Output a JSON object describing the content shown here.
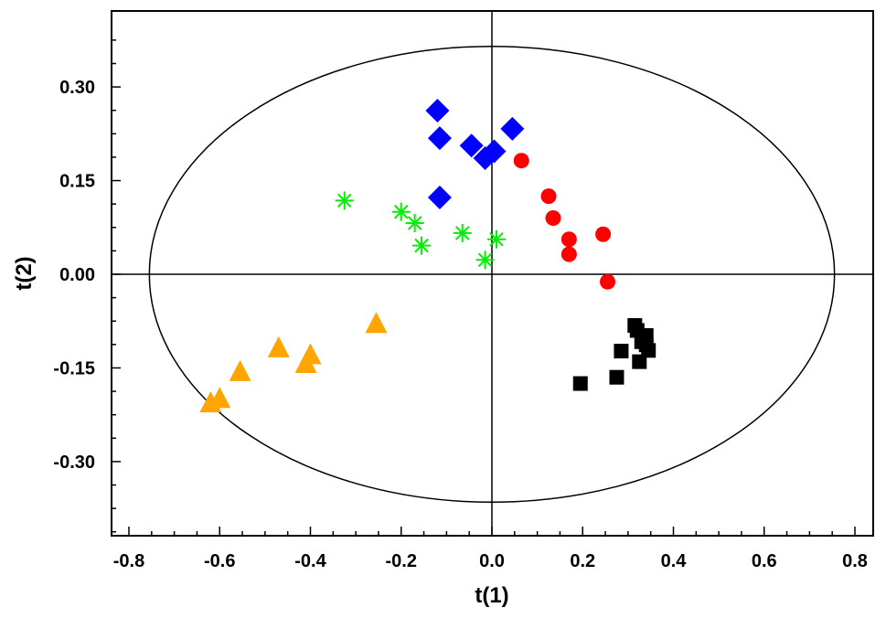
{
  "chart_data": {
    "type": "scatter",
    "title": "",
    "xlabel": "t(1)",
    "ylabel": "t(2)",
    "xlim": [
      -0.84,
      0.84
    ],
    "ylim": [
      -0.42,
      0.41
    ],
    "x_ticks": [
      -0.8,
      -0.6,
      -0.4,
      -0.2,
      0.0,
      0.2,
      0.4,
      0.6,
      0.8
    ],
    "x_tick_labels": [
      "-0.8",
      "-0.6",
      "-0.4",
      "-0.2",
      "0.0",
      "0.2",
      "0.4",
      "0.6",
      "0.8"
    ],
    "y_ticks": [
      0.3,
      0.15,
      0.0,
      -0.15,
      -0.3
    ],
    "y_tick_labels": [
      "0.30",
      "0.15",
      "0.00",
      "-0.15",
      "-0.30"
    ],
    "minor_x_step": 0.05,
    "minor_y_step": 0.0375,
    "grid": false,
    "confidence_ellipse": {
      "cx": 0.0,
      "cy": 0.0,
      "rx": 0.755,
      "ry": 0.365
    },
    "reference_lines": {
      "x": 0.0,
      "y": 0.0
    },
    "series": [
      {
        "marker": "diamond",
        "color": "#0000ff",
        "x": [
          -0.12,
          -0.115,
          -0.115,
          -0.045,
          -0.015,
          0.005,
          0.045
        ],
        "y": [
          0.262,
          0.218,
          0.123,
          0.206,
          0.186,
          0.197,
          0.233
        ]
      },
      {
        "marker": "circle",
        "color": "#ff0000",
        "x": [
          0.065,
          0.125,
          0.135,
          0.17,
          0.17,
          0.245,
          0.255
        ],
        "y": [
          0.182,
          0.125,
          0.09,
          0.056,
          0.032,
          0.064,
          -0.012
        ]
      },
      {
        "marker": "asterisk",
        "color": "#00ee00",
        "x": [
          -0.325,
          -0.2,
          -0.17,
          -0.155,
          -0.065,
          -0.015,
          0.01
        ],
        "y": [
          0.118,
          0.1,
          0.082,
          0.046,
          0.066,
          0.023,
          0.056
        ]
      },
      {
        "marker": "square",
        "color": "#000000",
        "x": [
          0.195,
          0.275,
          0.285,
          0.315,
          0.32,
          0.325,
          0.34,
          0.345,
          0.34,
          0.33
        ],
        "y": [
          -0.175,
          -0.165,
          -0.123,
          -0.082,
          -0.09,
          -0.14,
          -0.098,
          -0.122,
          -0.113,
          -0.108
        ]
      },
      {
        "marker": "triangle",
        "color": "#ffa500",
        "x": [
          -0.62,
          -0.6,
          -0.555,
          -0.47,
          -0.41,
          -0.4,
          -0.255
        ],
        "y": [
          -0.205,
          -0.198,
          -0.155,
          -0.117,
          -0.142,
          -0.128,
          -0.078
        ]
      }
    ]
  }
}
